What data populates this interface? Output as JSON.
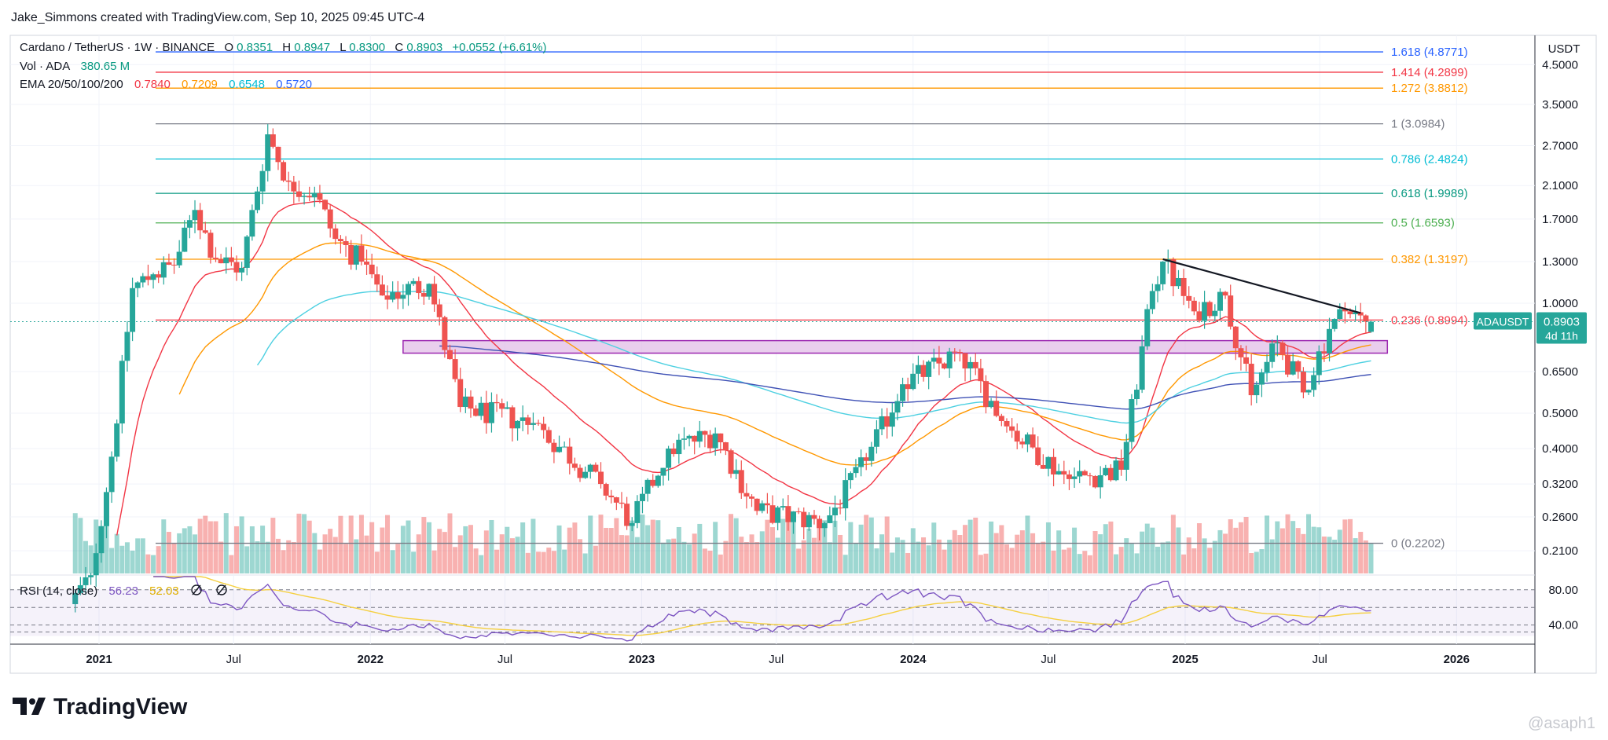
{
  "header": {
    "attribution": "Jake_Simmons created with TradingView.com, Sep 10, 2025 09:45 UTC-4"
  },
  "legend": {
    "symbol": "Cardano / TetherUS · 1W · BINANCE",
    "o_label": "O",
    "o_value": "0.8351",
    "h_label": "H",
    "h_value": "0.8947",
    "l_label": "L",
    "l_value": "0.8300",
    "c_label": "C",
    "c_value": "0.8903",
    "change": "+0.0552 (+6.61%)",
    "vol_label": "Vol · ADA",
    "vol_value": "380.65 M",
    "ema_label": "EMA 20/50/100/200",
    "ema_values": [
      "0.7840",
      "0.7209",
      "0.6548",
      "0.5720"
    ]
  },
  "price_axis": {
    "currency": "USDT",
    "ticks": [
      "4.5000",
      "3.5000",
      "2.7000",
      "2.1000",
      "1.7000",
      "1.3000",
      "1.0000",
      "0.6500",
      "0.5000",
      "0.4000",
      "0.3200",
      "0.2600",
      "0.2100"
    ],
    "tick_values": [
      4.5,
      3.5,
      2.7,
      2.1,
      1.7,
      1.3,
      1.0,
      0.65,
      0.5,
      0.4,
      0.32,
      0.26,
      0.21
    ],
    "last_price_label": "ADAUSDT",
    "last_price": "0.8903",
    "countdown": "4d 11h"
  },
  "rsi": {
    "label": "RSI (14, close)",
    "value1": "56.23",
    "value2": "52.03",
    "ticks": [
      "80.00",
      "40.00"
    ]
  },
  "time_axis": {
    "labels": [
      "2021",
      "Jul",
      "2022",
      "Jul",
      "2023",
      "Jul",
      "2024",
      "Jul",
      "2025",
      "Jul",
      "2026"
    ]
  },
  "fib_levels": [
    {
      "label": "1.618 (4.8771)",
      "value": 4.8771,
      "color": "#2962ff"
    },
    {
      "label": "1.414 (4.2899)",
      "value": 4.2899,
      "color": "#f23645"
    },
    {
      "label": "1.272 (3.8812)",
      "value": 3.8812,
      "color": "#ff9800"
    },
    {
      "label": "1 (3.0984)",
      "value": 3.0984,
      "color": "#787b86"
    },
    {
      "label": "0.786 (2.4824)",
      "value": 2.4824,
      "color": "#00bcd4"
    },
    {
      "label": "0.618 (1.9989)",
      "value": 1.9989,
      "color": "#089981"
    },
    {
      "label": "0.5 (1.6593)",
      "value": 1.6593,
      "color": "#4caf50"
    },
    {
      "label": "0.382 (1.3197)",
      "value": 1.3197,
      "color": "#ff9800"
    },
    {
      "label": "0.236 (0.8994)",
      "value": 0.8994,
      "color": "#f23645"
    },
    {
      "label": "0 (0.2202)",
      "value": 0.2202,
      "color": "#787b86"
    }
  ],
  "branding": {
    "logo_text": "TradingView",
    "watermark": "@asaph1"
  },
  "colors": {
    "up": "#26a69a",
    "down": "#ef5350",
    "ema20": "#f23645",
    "ema50": "#ff9800",
    "ema100": "#4dd0e1",
    "ema200": "#3f51b5",
    "support_zone": "#e1bee7",
    "support_border": "#9c27b0",
    "rsi_line": "#7e57c2",
    "rsi_ma": "#f5d041"
  },
  "chart_data": {
    "type": "candlestick",
    "symbol": "ADAUSDT",
    "interval": "1W",
    "y_scale": "log",
    "ylim": [
      0.185,
      5.5
    ],
    "x_range": [
      "2020-09-01",
      "2026-07-31"
    ],
    "candles_weekly_close_approx": [
      {
        "date": "2020-11-30",
        "close": 0.15
      },
      {
        "date": "2020-12-28",
        "close": 0.18
      },
      {
        "date": "2021-01-25",
        "close": 0.38
      },
      {
        "date": "2021-02-22",
        "close": 1.1
      },
      {
        "date": "2021-03-22",
        "close": 1.2
      },
      {
        "date": "2021-04-19",
        "close": 1.27
      },
      {
        "date": "2021-05-17",
        "close": 1.8
      },
      {
        "date": "2021-06-14",
        "close": 1.32
      },
      {
        "date": "2021-07-19",
        "close": 1.25
      },
      {
        "date": "2021-08-23",
        "close": 2.9
      },
      {
        "date": "2021-09-20",
        "close": 2.15
      },
      {
        "date": "2021-10-25",
        "close": 2.0
      },
      {
        "date": "2021-11-22",
        "close": 1.5
      },
      {
        "date": "2021-12-27",
        "close": 1.3
      },
      {
        "date": "2022-01-24",
        "close": 1.05
      },
      {
        "date": "2022-03-28",
        "close": 1.13
      },
      {
        "date": "2022-05-09",
        "close": 0.52
      },
      {
        "date": "2022-08-15",
        "close": 0.47
      },
      {
        "date": "2022-11-14",
        "close": 0.32
      },
      {
        "date": "2022-12-26",
        "close": 0.25
      },
      {
        "date": "2023-02-13",
        "close": 0.4
      },
      {
        "date": "2023-04-17",
        "close": 0.44
      },
      {
        "date": "2023-06-12",
        "close": 0.27
      },
      {
        "date": "2023-09-11",
        "close": 0.25
      },
      {
        "date": "2023-11-06",
        "close": 0.37
      },
      {
        "date": "2023-12-25",
        "close": 0.6
      },
      {
        "date": "2024-03-11",
        "close": 0.73
      },
      {
        "date": "2024-05-13",
        "close": 0.46
      },
      {
        "date": "2024-08-05",
        "close": 0.33
      },
      {
        "date": "2024-10-14",
        "close": 0.35
      },
      {
        "date": "2024-11-25",
        "close": 1.08
      },
      {
        "date": "2024-12-09",
        "close": 1.3
      },
      {
        "date": "2025-01-20",
        "close": 0.95
      },
      {
        "date": "2025-03-03",
        "close": 1.05
      },
      {
        "date": "2025-04-07",
        "close": 0.56
      },
      {
        "date": "2025-05-12",
        "close": 0.78
      },
      {
        "date": "2025-06-16",
        "close": 0.57
      },
      {
        "date": "2025-07-21",
        "close": 0.85
      },
      {
        "date": "2025-08-11",
        "close": 0.95
      },
      {
        "date": "2025-09-08",
        "close": 0.8903
      }
    ],
    "trendline": [
      {
        "date": "2024-12-02",
        "value": 1.32
      },
      {
        "date": "2025-08-25",
        "value": 0.94
      }
    ],
    "support_zone": {
      "start": "2022-02-14",
      "end": "2025-09-30",
      "high": 0.79,
      "low": 0.73
    },
    "ema_latest": {
      "EMA20": 0.784,
      "EMA50": 0.7209,
      "EMA100": 0.6548,
      "EMA200": 0.572
    },
    "rsi_latest": [
      56.23,
      52.03
    ],
    "rsi_range": [
      0,
      100
    ]
  }
}
